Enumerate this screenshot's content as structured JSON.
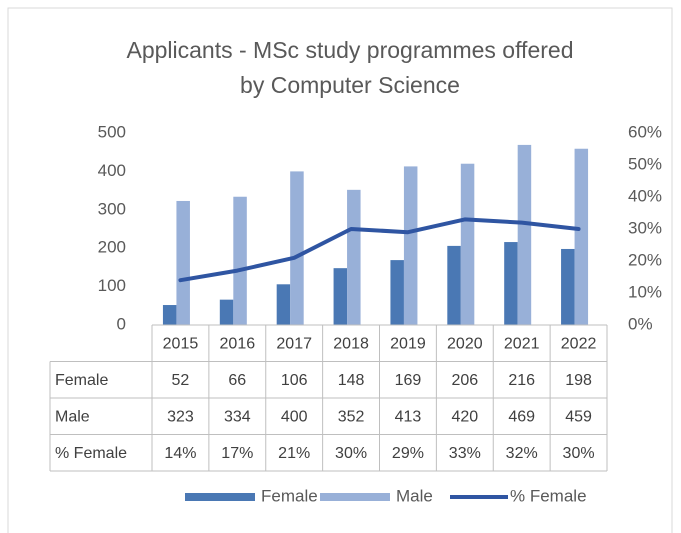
{
  "chart_data": {
    "type": "bar",
    "title": "Applicants - MSc study programmes offered by Computer Science",
    "categories": [
      "2015",
      "2016",
      "2017",
      "2018",
      "2019",
      "2020",
      "2021",
      "2022"
    ],
    "series": [
      {
        "name": "Female",
        "color": "#4a78b4",
        "values": [
          52,
          66,
          106,
          148,
          169,
          206,
          216,
          198
        ]
      },
      {
        "name": "Male",
        "color": "#98b0d8",
        "values": [
          323,
          334,
          400,
          352,
          413,
          420,
          469,
          459
        ]
      },
      {
        "name": "% Female",
        "type": "line",
        "axis": "y2",
        "color": "#2f55a2",
        "values": [
          14,
          17,
          21,
          30,
          29,
          33,
          32,
          30
        ],
        "value_labels": [
          "14%",
          "17%",
          "21%",
          "30%",
          "29%",
          "33%",
          "32%",
          "30%"
        ]
      }
    ],
    "ylim": [
      0,
      500
    ],
    "yticks": [
      0,
      100,
      200,
      300,
      400,
      500
    ],
    "y2lim": [
      0,
      60
    ],
    "y2ticks": [
      {
        "value": 0,
        "label": "0%"
      },
      {
        "value": 10,
        "label": "10%"
      },
      {
        "value": 20,
        "label": "20%"
      },
      {
        "value": 30,
        "label": "30%"
      },
      {
        "value": 40,
        "label": "40%"
      },
      {
        "value": 50,
        "label": "50%"
      },
      {
        "value": 60,
        "label": "60%"
      }
    ],
    "legend": "bottom",
    "data_table": true
  }
}
